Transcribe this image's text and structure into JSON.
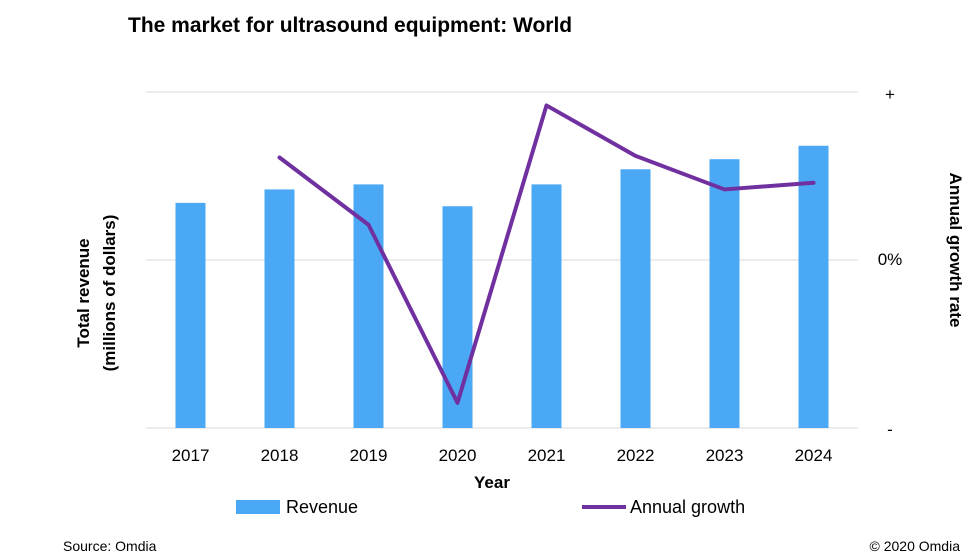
{
  "chart_data": {
    "type": "bar",
    "title": "The market for ultrasound equipment: World",
    "xlabel": "Year",
    "ylabel_left": [
      "Total revenue",
      "(millions of dollars)"
    ],
    "ylabel_right": "Annual growth rate",
    "categories": [
      "2017",
      "2018",
      "2019",
      "2020",
      "2021",
      "2022",
      "2023",
      "2024"
    ],
    "right_axis_ticks": [
      "+",
      "0%",
      "-"
    ],
    "ylim_left": [
      0,
      1
    ],
    "ylim_right": [
      -1,
      1
    ],
    "series": [
      {
        "name": "Revenue",
        "type": "bar",
        "axis": "left",
        "color": "#4aa8f5",
        "values": [
          0.67,
          0.71,
          0.725,
          0.66,
          0.725,
          0.77,
          0.8,
          0.84
        ]
      },
      {
        "name": "Annual growth",
        "type": "line",
        "axis": "right",
        "color": "#7030a0",
        "values": [
          null,
          0.61,
          0.21,
          -0.85,
          0.92,
          0.62,
          0.42,
          0.46
        ]
      }
    ],
    "grid": true,
    "legend_position": "bottom"
  },
  "footer": {
    "source": "Source: Omdia",
    "copyright": "© 2020 Omdia"
  }
}
